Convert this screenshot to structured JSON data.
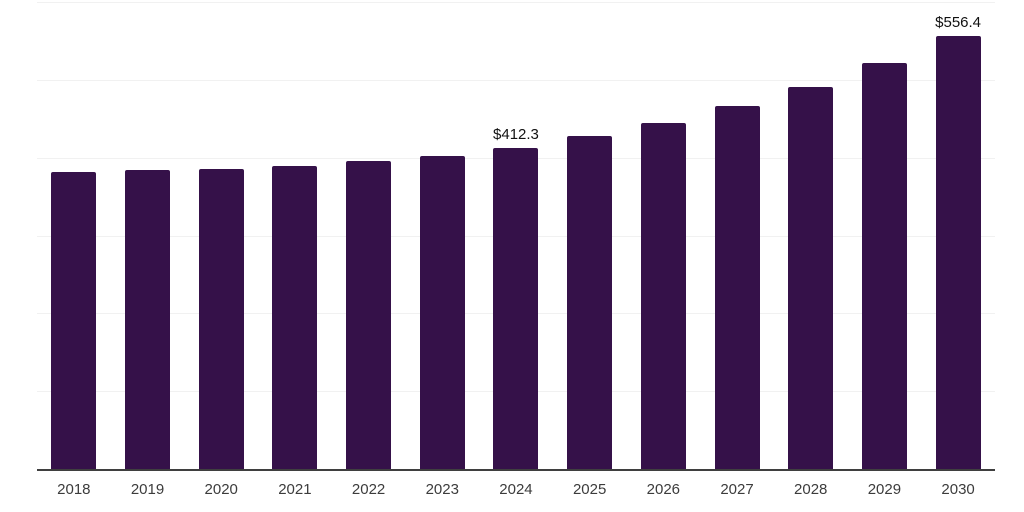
{
  "chart_data": {
    "type": "bar",
    "categories": [
      "2018",
      "2019",
      "2020",
      "2021",
      "2022",
      "2023",
      "2024",
      "2025",
      "2026",
      "2027",
      "2028",
      "2029",
      "2030"
    ],
    "values": [
      381.9,
      383.7,
      385.0,
      388.8,
      395.6,
      402.7,
      412.3,
      427.8,
      444.5,
      466.3,
      490.7,
      521.5,
      556.4
    ],
    "point_labels": [
      "",
      "",
      "",
      "",
      "",
      "",
      "$412.3",
      "",
      "",
      "",
      "",
      "",
      "$556.4"
    ],
    "title": "",
    "xlabel": "",
    "ylabel": "",
    "ylim": [
      0,
      600
    ],
    "grid_interval": 100,
    "grid_visible": true,
    "y_tick_labels_visible": false,
    "legend": "none",
    "colors": {
      "bar": "#351149",
      "gridline": "#f1f1f1",
      "axis_line": "#3f3f3f",
      "tick_label": "#3c3c3c",
      "value_label": "#111111",
      "background": "#ffffff"
    }
  }
}
